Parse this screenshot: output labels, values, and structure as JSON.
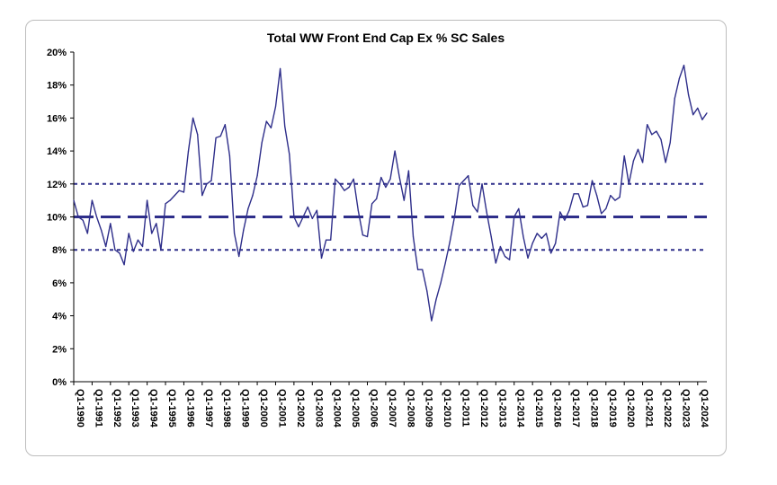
{
  "chart_data": {
    "type": "line",
    "title": "Total WW Front End Cap Ex % SC Sales",
    "xlabel": "",
    "ylabel": "",
    "ylim": [
      0,
      20
    ],
    "y_ticks": [
      "0%",
      "2%",
      "4%",
      "6%",
      "8%",
      "10%",
      "12%",
      "14%",
      "16%",
      "18%",
      "20%"
    ],
    "x_ticks": [
      "Q1-1990",
      "Q1-1991",
      "Q1-1992",
      "Q1-1993",
      "Q1-1994",
      "Q1-1995",
      "Q1-1996",
      "Q1-1997",
      "Q1-1998",
      "Q1-1999",
      "Q1-2000",
      "Q1-2001",
      "Q1-2002",
      "Q1-2003",
      "Q1-2004",
      "Q1-2005",
      "Q1-2006",
      "Q1-2007",
      "Q1-2008",
      "Q1-2009",
      "Q1-2010",
      "Q1-2011",
      "Q1-2012",
      "Q1-2013",
      "Q1-2014",
      "Q1-2015",
      "Q1-2016",
      "Q1-2017",
      "Q1-2018",
      "Q1-2019",
      "Q1-2020",
      "Q1-2021",
      "Q1-2022",
      "Q1-2023",
      "Q1-2024"
    ],
    "x_start_year": 1990,
    "reference_lines": [
      {
        "y": 12,
        "style": "dotted"
      },
      {
        "y": 10,
        "style": "dashed"
      },
      {
        "y": 8,
        "style": "dotted"
      }
    ],
    "line_color": "#2e2e8a",
    "grid": false,
    "series": [
      {
        "values": [
          11.0,
          10.0,
          9.8,
          9.0,
          11.0,
          10.0,
          9.2,
          8.2,
          9.6,
          8.0,
          7.8,
          7.1,
          9.0,
          7.9,
          8.6,
          8.2,
          11.0,
          9.0,
          9.6,
          8.0,
          10.8,
          11.0,
          11.3,
          11.6,
          11.5,
          14.0,
          16.0,
          15.0,
          11.3,
          12.0,
          12.2,
          14.8,
          14.9,
          15.6,
          13.7,
          9.0,
          7.6,
          9.2,
          10.5,
          11.3,
          12.5,
          14.5,
          15.8,
          15.4,
          16.7,
          19.0,
          15.5,
          13.8,
          10.0,
          9.4,
          10.0,
          10.6,
          9.9,
          10.4,
          7.5,
          8.6,
          8.6,
          12.3,
          12.0,
          11.6,
          11.8,
          12.3,
          10.4,
          8.9,
          8.8,
          10.8,
          11.1,
          12.4,
          11.8,
          12.3,
          14.0,
          12.4,
          11.0,
          12.8,
          8.8,
          6.8,
          6.8,
          5.5,
          3.7,
          5.0,
          6.0,
          7.2,
          8.5,
          10.0,
          11.9,
          12.2,
          12.5,
          10.7,
          10.3,
          12.0,
          10.3,
          8.8,
          7.2,
          8.2,
          7.6,
          7.4,
          10.0,
          10.5,
          8.8,
          7.5,
          8.4,
          9.0,
          8.7,
          9.0,
          7.8,
          8.4,
          10.3,
          9.8,
          10.4,
          11.4,
          11.4,
          10.6,
          10.7,
          12.2,
          11.3,
          10.2,
          10.5,
          11.3,
          11.0,
          11.2,
          13.7,
          12.0,
          13.4,
          14.1,
          13.3,
          15.6,
          15.0,
          15.2,
          14.7,
          13.3,
          14.5,
          17.2,
          18.4,
          19.2,
          17.4,
          16.2,
          16.6,
          15.9,
          16.3
        ]
      }
    ]
  }
}
